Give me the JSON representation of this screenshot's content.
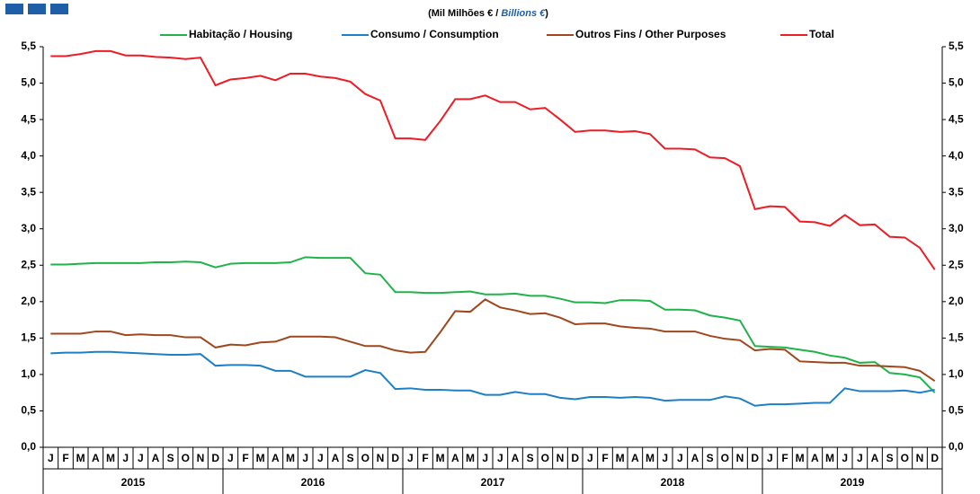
{
  "chart_data": {
    "type": "line",
    "subtitle": [
      "(Mil Milhões € / ",
      "Billions €",
      ")"
    ],
    "categories": [
      "J",
      "F",
      "M",
      "A",
      "M",
      "J",
      "J",
      "A",
      "S",
      "O",
      "N",
      "D",
      "J",
      "F",
      "M",
      "A",
      "M",
      "J",
      "J",
      "A",
      "S",
      "O",
      "N",
      "D",
      "J",
      "F",
      "M",
      "A",
      "M",
      "J",
      "J",
      "A",
      "S",
      "O",
      "N",
      "D",
      "J",
      "F",
      "M",
      "A",
      "M",
      "J",
      "J",
      "A",
      "S",
      "O",
      "N",
      "D",
      "J",
      "F",
      "M",
      "A",
      "M",
      "J",
      "J",
      "A",
      "S",
      "O",
      "N",
      "D"
    ],
    "years": [
      "2015",
      "2016",
      "2017",
      "2018",
      "2019"
    ],
    "series": [
      {
        "name": "Habitação / Housing",
        "color": "#1fb34a",
        "values": [
          2.51,
          2.51,
          2.52,
          2.53,
          2.53,
          2.53,
          2.53,
          2.54,
          2.54,
          2.55,
          2.54,
          2.47,
          2.52,
          2.53,
          2.53,
          2.53,
          2.54,
          2.61,
          2.6,
          2.6,
          2.6,
          2.39,
          2.37,
          2.13,
          2.13,
          2.12,
          2.12,
          2.13,
          2.14,
          2.1,
          2.1,
          2.11,
          2.08,
          2.08,
          2.04,
          1.99,
          1.99,
          1.98,
          2.02,
          2.02,
          2.01,
          1.89,
          1.89,
          1.88,
          1.81,
          1.78,
          1.74,
          1.39,
          1.38,
          1.37,
          1.34,
          1.31,
          1.26,
          1.23,
          1.16,
          1.17,
          1.02,
          1.0,
          0.96,
          0.75
        ]
      },
      {
        "name": "Consumo / Consumption",
        "color": "#1f7fc4",
        "values": [
          1.29,
          1.3,
          1.3,
          1.31,
          1.31,
          1.3,
          1.29,
          1.28,
          1.27,
          1.27,
          1.28,
          1.12,
          1.13,
          1.13,
          1.12,
          1.05,
          1.05,
          0.97,
          0.97,
          0.97,
          0.97,
          1.06,
          1.02,
          0.8,
          0.81,
          0.79,
          0.79,
          0.78,
          0.78,
          0.72,
          0.72,
          0.76,
          0.73,
          0.73,
          0.68,
          0.66,
          0.69,
          0.69,
          0.68,
          0.69,
          0.68,
          0.64,
          0.65,
          0.65,
          0.65,
          0.7,
          0.67,
          0.57,
          0.59,
          0.59,
          0.6,
          0.61,
          0.61,
          0.81,
          0.77,
          0.77,
          0.77,
          0.78,
          0.75,
          0.79
        ]
      },
      {
        "name": "Outros Fins / Other Purposes",
        "color": "#a0471c",
        "values": [
          1.56,
          1.56,
          1.56,
          1.59,
          1.59,
          1.54,
          1.55,
          1.54,
          1.54,
          1.51,
          1.51,
          1.37,
          1.41,
          1.4,
          1.44,
          1.45,
          1.52,
          1.52,
          1.52,
          1.51,
          1.45,
          1.39,
          1.39,
          1.33,
          1.3,
          1.31,
          1.58,
          1.87,
          1.86,
          2.03,
          1.92,
          1.88,
          1.83,
          1.84,
          1.78,
          1.69,
          1.7,
          1.7,
          1.66,
          1.64,
          1.63,
          1.59,
          1.59,
          1.59,
          1.53,
          1.49,
          1.47,
          1.33,
          1.35,
          1.34,
          1.18,
          1.17,
          1.16,
          1.16,
          1.12,
          1.12,
          1.11,
          1.1,
          1.05,
          0.91
        ]
      },
      {
        "name": "Total",
        "color": "#ee1c24",
        "values": [
          5.37,
          5.37,
          5.4,
          5.44,
          5.44,
          5.38,
          5.38,
          5.36,
          5.35,
          5.33,
          5.35,
          4.97,
          5.05,
          5.07,
          5.1,
          5.04,
          5.13,
          5.13,
          5.09,
          5.07,
          5.02,
          4.85,
          4.76,
          4.24,
          4.24,
          4.22,
          4.48,
          4.78,
          4.78,
          4.83,
          4.74,
          4.74,
          4.64,
          4.66,
          4.5,
          4.33,
          4.35,
          4.35,
          4.33,
          4.34,
          4.3,
          4.1,
          4.1,
          4.09,
          3.98,
          3.97,
          3.86,
          3.27,
          3.31,
          3.3,
          3.1,
          3.09,
          3.04,
          3.19,
          3.05,
          3.06,
          2.89,
          2.88,
          2.74,
          2.44
        ]
      }
    ],
    "ylim": [
      0,
      5.5
    ],
    "yticks": [
      {
        "value": 0,
        "label": "0,0"
      },
      {
        "value": 0.5,
        "label": "0,5"
      },
      {
        "value": 1,
        "label": "1,0"
      },
      {
        "value": 1.5,
        "label": "1,5"
      },
      {
        "value": 2,
        "label": "2,0"
      },
      {
        "value": 2.5,
        "label": "2,5"
      },
      {
        "value": 3,
        "label": "3,0"
      },
      {
        "value": 3.5,
        "label": "3,5"
      },
      {
        "value": 4,
        "label": "4,0"
      },
      {
        "value": 4.5,
        "label": "4,5"
      },
      {
        "value": 5,
        "label": "5,0"
      },
      {
        "value": 5.5,
        "label": "5,5"
      }
    ],
    "y2lim": [
      0,
      5.5
    ],
    "y2ticks": [
      {
        "value": 0,
        "label": "0,0"
      },
      {
        "value": 0.5,
        "label": "0,5"
      },
      {
        "value": 1,
        "label": "1,0"
      },
      {
        "value": 1.5,
        "label": "1,5"
      },
      {
        "value": 2,
        "label": "2,0"
      },
      {
        "value": 2.5,
        "label": "2,5"
      },
      {
        "value": 3,
        "label": "3,0"
      },
      {
        "value": 3.5,
        "label": "3,5"
      },
      {
        "value": 4,
        "label": "4,0"
      },
      {
        "value": 4.5,
        "label": "4,5"
      },
      {
        "value": 5,
        "label": "5,0"
      },
      {
        "value": 5.5,
        "label": "5,5"
      }
    ]
  }
}
